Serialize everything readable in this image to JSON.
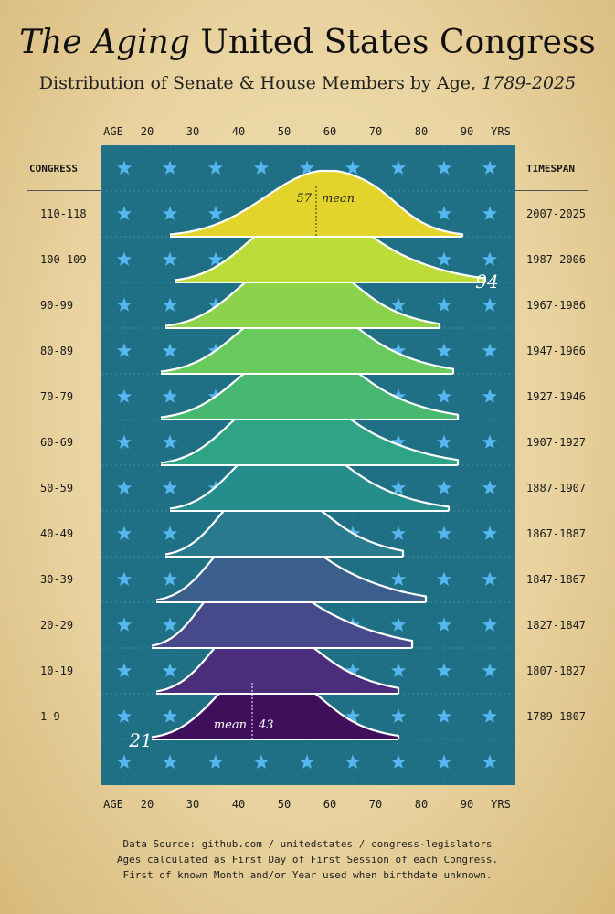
{
  "title": {
    "prefix": "The",
    "emph": "Aging",
    "rest": "United States Congress"
  },
  "subtitle": {
    "text": "Distribution of Senate & House Members by Age,",
    "years": "1789-2025"
  },
  "axis": {
    "age_label": "AGE",
    "units_label": "YRS",
    "ticks": [
      "20",
      "30",
      "40",
      "50",
      "60",
      "70",
      "80",
      "90"
    ]
  },
  "columns": {
    "left": "CONGRESS",
    "right": "TIMESPAN"
  },
  "rows": [
    {
      "congress": "110-118",
      "timespan": "2007-2025"
    },
    {
      "congress": "100-109",
      "timespan": "1987-2006"
    },
    {
      "congress": "90-99",
      "timespan": "1967-1986"
    },
    {
      "congress": "80-89",
      "timespan": "1947-1966"
    },
    {
      "congress": "70-79",
      "timespan": "1927-1946"
    },
    {
      "congress": "60-69",
      "timespan": "1907-1927"
    },
    {
      "congress": "50-59",
      "timespan": "1887-1907"
    },
    {
      "congress": "40-49",
      "timespan": "1867-1887"
    },
    {
      "congress": "30-39",
      "timespan": "1847-1867"
    },
    {
      "congress": "20-29",
      "timespan": "1827-1847"
    },
    {
      "congress": "10-19",
      "timespan": "1807-1827"
    },
    {
      "congress": "1-9",
      "timespan": "1789-1807"
    }
  ],
  "annotations": {
    "top_mean_value": "57",
    "top_mean_word": "mean",
    "bottom_mean_value": "43",
    "bottom_mean_word": "mean",
    "max_age": "94",
    "min_age": "21"
  },
  "source": {
    "line1": "Data Source: github.com / unitedstates / congress-legislators",
    "line2": "Ages calculated as First Day of First Session of each Congress.",
    "line3": "First of known Month and/or Year used when birthdate unknown."
  },
  "colors": {
    "panel": "#1f6f85",
    "star": "#55b6f0",
    "outline": "#ffffff",
    "ridges": [
      "#e2d42a",
      "#bcdc3a",
      "#8cd24a",
      "#68c95c",
      "#48b871",
      "#2fa485",
      "#258d8c",
      "#2a7a8e",
      "#3a5f8d",
      "#474a8a",
      "#4a2e7c",
      "#3f0f5c"
    ]
  },
  "chart_data": {
    "type": "ridgeline",
    "x_label": "AGE",
    "x_unit": "YRS",
    "xlim": [
      15,
      96
    ],
    "categories": [
      "110-118",
      "100-109",
      "90-99",
      "80-89",
      "70-79",
      "60-69",
      "50-59",
      "40-49",
      "30-39",
      "20-29",
      "10-19",
      "1-9"
    ],
    "series": [
      {
        "name": "110-118",
        "range": [
          25,
          89
        ],
        "peak_age": 59,
        "mean": 57
      },
      {
        "name": "100-109",
        "range": [
          26,
          94
        ],
        "peak_age": 52,
        "mean": 53
      },
      {
        "name": "90-99",
        "range": [
          24,
          84
        ],
        "peak_age": 50,
        "mean": 51
      },
      {
        "name": "80-89",
        "range": [
          23,
          87
        ],
        "peak_age": 50,
        "mean": 52
      },
      {
        "name": "70-79",
        "range": [
          23,
          88
        ],
        "peak_age": 50,
        "mean": 52
      },
      {
        "name": "60-69",
        "range": [
          23,
          88
        ],
        "peak_age": 47,
        "mean": 50
      },
      {
        "name": "50-59",
        "range": [
          25,
          86
        ],
        "peak_age": 47,
        "mean": 48
      },
      {
        "name": "40-49",
        "range": [
          24,
          76
        ],
        "peak_age": 43,
        "mean": 46
      },
      {
        "name": "30-39",
        "range": [
          22,
          81
        ],
        "peak_age": 41,
        "mean": 45
      },
      {
        "name": "20-29",
        "range": [
          21,
          78
        ],
        "peak_age": 38,
        "mean": 44
      },
      {
        "name": "10-19",
        "range": [
          22,
          75
        ],
        "peak_age": 41,
        "mean": 44
      },
      {
        "name": "1-9",
        "range": [
          21,
          75
        ],
        "peak_age": 43,
        "mean": 43
      }
    ]
  }
}
